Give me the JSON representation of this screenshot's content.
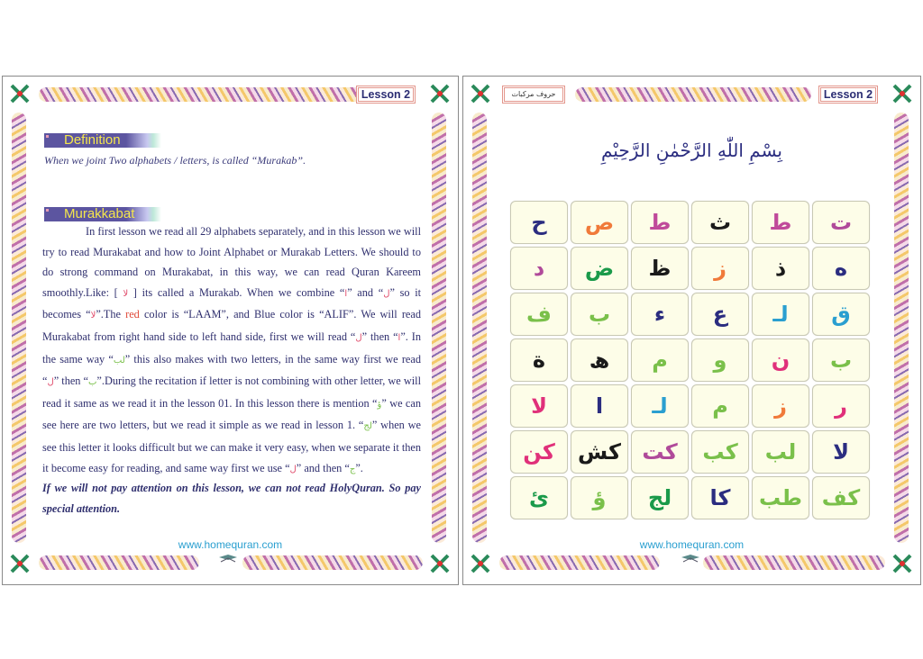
{
  "left_page": {
    "lesson_label": "Lesson 2",
    "definition_heading": "Definition",
    "definition_text": "When we joint Two alphabets / letters, is called “Murakab”.",
    "murakkabat_heading": "Murakkabat",
    "paragraph": [
      {
        "t": "In first lesson we read all 29 alphabets separately, and in this lesson we will try to read Murakabat and how to Joint Alphabet or Murakab Letters. We should to do strong command on Murakabat, in this way, we can read Quran Kareem smoothly.Like: [ "
      },
      {
        "t": "لا",
        "c": "ar"
      },
      {
        "t": " ] its called a Murakab. When we combine “"
      },
      {
        "t": "ا",
        "c": "ar"
      },
      {
        "t": "” and “"
      },
      {
        "t": "ل",
        "c": "ar"
      },
      {
        "t": "” so it becomes “"
      },
      {
        "t": "لا",
        "c": "ar"
      },
      {
        "t": "”.The "
      },
      {
        "t": "red",
        "c": "red"
      },
      {
        "t": " color is “LAAM”, and Blue color is “ALIF”. We will read Murakabat from right hand side to left hand side, first we will read “"
      },
      {
        "t": "ل",
        "c": "ar"
      },
      {
        "t": "” then “"
      },
      {
        "t": "ا",
        "c": "ar"
      },
      {
        "t": "”. In the same way “"
      },
      {
        "t": "لب",
        "c": "gr"
      },
      {
        "t": "” this also makes with two letters, in the same way first we read “"
      },
      {
        "t": "ل",
        "c": "ar"
      },
      {
        "t": "” then “"
      },
      {
        "t": "ب",
        "c": "gr"
      },
      {
        "t": "”.During the recitation if letter is not combining with other letter, we will read it same as we read it in the lesson 01. In this lesson there is mention “"
      },
      {
        "t": "ؤ",
        "c": "gr"
      },
      {
        "t": "” we can see here are two letters, but we read it simple as we read in lesson 1. “"
      },
      {
        "t": "لج",
        "c": "gr"
      },
      {
        "t": "” when we see this letter it looks difficult but we can make it very easy, when we separate it then it become easy for reading, and same way first we use “"
      },
      {
        "t": "ل",
        "c": "ar"
      },
      {
        "t": "” and then “"
      },
      {
        "t": "ج",
        "c": "gr"
      },
      {
        "t": "”."
      }
    ],
    "note": "If we will not pay attention on this lesson, we can not read HolyQuran. So pay special attention.",
    "website": "www.homequran.com"
  },
  "right_page": {
    "lesson_label": "Lesson 2",
    "urdu_label": "حروف مرکبات",
    "bismillah": "بِسْمِ اللّٰهِ الرَّحْمٰنِ الرَّحِيْمِ",
    "letter_grid": [
      [
        {
          "l": "ح",
          "c": "#2b2d80"
        },
        {
          "l": "ص",
          "c": "#f07a3a"
        },
        {
          "l": "ط",
          "c": "#c04a9a"
        },
        {
          "l": "ث",
          "c": "#1a1a1a"
        },
        {
          "l": "ط",
          "c": "#c04a9a"
        },
        {
          "l": "ت",
          "c": "#b04a9a"
        }
      ],
      [
        {
          "l": "د",
          "c": "#b04a9a"
        },
        {
          "l": "ض",
          "c": "#1a9a4a"
        },
        {
          "l": "ظ",
          "c": "#1a1a1a"
        },
        {
          "l": "ز",
          "c": "#f07a3a"
        },
        {
          "l": "ذ",
          "c": "#1a1a1a"
        },
        {
          "l": "ه",
          "c": "#2b2d80"
        }
      ],
      [
        {
          "l": "ف",
          "c": "#7ac04a"
        },
        {
          "l": "ب",
          "c": "#7ac04a"
        },
        {
          "l": "ء",
          "c": "#2b2d80"
        },
        {
          "l": "ع",
          "c": "#2b2d80"
        },
        {
          "l": "لـ",
          "c": "#2a9fd0"
        },
        {
          "l": "ق",
          "c": "#2a9fd0"
        }
      ],
      [
        {
          "l": "ة",
          "c": "#1a1a1a"
        },
        {
          "l": "ھ",
          "c": "#1a1a1a"
        },
        {
          "l": "م",
          "c": "#7ac04a"
        },
        {
          "l": "و",
          "c": "#7ac04a"
        },
        {
          "l": "ن",
          "c": "#e0307a"
        },
        {
          "l": "ب",
          "c": "#7ac04a"
        }
      ],
      [
        {
          "l": "لا",
          "c": "#e0307a"
        },
        {
          "l": "ا",
          "c": "#2b2d80"
        },
        {
          "l": "لـ",
          "c": "#2a9fd0"
        },
        {
          "l": "م",
          "c": "#7ac04a"
        },
        {
          "l": "ز",
          "c": "#f07a3a"
        },
        {
          "l": "ر",
          "c": "#e0307a"
        }
      ],
      [
        {
          "l": "کن",
          "c": "#e0307a"
        },
        {
          "l": "کش",
          "c": "#1a1a1a"
        },
        {
          "l": "کت",
          "c": "#b04a9a"
        },
        {
          "l": "کب",
          "c": "#7ac04a"
        },
        {
          "l": "لب",
          "c": "#7ac04a"
        },
        {
          "l": "لا",
          "c": "#2b2d80"
        }
      ],
      [
        {
          "l": "ئ",
          "c": "#1a9a4a"
        },
        {
          "l": "ؤ",
          "c": "#7ac04a"
        },
        {
          "l": "لج",
          "c": "#1a9a4a"
        },
        {
          "l": "کا",
          "c": "#2b2d80"
        },
        {
          "l": "طب",
          "c": "#7ac04a"
        },
        {
          "l": "کف",
          "c": "#7ac04a"
        }
      ]
    ],
    "website": "www.homequran.com"
  }
}
